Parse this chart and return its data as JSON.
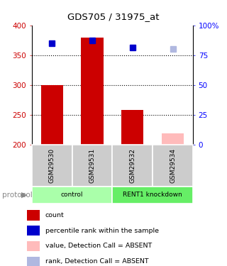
{
  "title": "GDS705 / 31975_at",
  "samples": [
    "GSM29530",
    "GSM29531",
    "GSM29532",
    "GSM29534"
  ],
  "bar_values": [
    300,
    380,
    258,
    220
  ],
  "bar_colors": [
    "#cc0000",
    "#cc0000",
    "#cc0000",
    "#ffbbbb"
  ],
  "bar_bottom": 200,
  "rank_values": [
    370,
    375,
    363,
    360
  ],
  "rank_colors": [
    "#0000cc",
    "#0000cc",
    "#0000cc",
    "#b0b8e0"
  ],
  "ylim_left": [
    200,
    400
  ],
  "ylim_right": [
    0,
    100
  ],
  "yticks_left": [
    200,
    250,
    300,
    350,
    400
  ],
  "yticks_right": [
    0,
    25,
    50,
    75,
    100
  ],
  "grid_values": [
    250,
    300,
    350
  ],
  "protocol_groups": [
    {
      "label": "control",
      "start": 0,
      "end": 2,
      "color": "#aaffaa"
    },
    {
      "label": "RENT1 knockdown",
      "start": 2,
      "end": 4,
      "color": "#66ee66"
    }
  ],
  "legend_items": [
    {
      "color": "#cc0000",
      "label": "count"
    },
    {
      "color": "#0000cc",
      "label": "percentile rank within the sample"
    },
    {
      "color": "#ffbbbb",
      "label": "value, Detection Call = ABSENT"
    },
    {
      "color": "#b0b8e0",
      "label": "rank, Detection Call = ABSENT"
    }
  ],
  "label_color_left": "#cc0000",
  "label_color_right": "#0000ff",
  "sample_box_color": "#cccccc",
  "plot_bg": "#ffffff",
  "fig_bg": "#ffffff"
}
